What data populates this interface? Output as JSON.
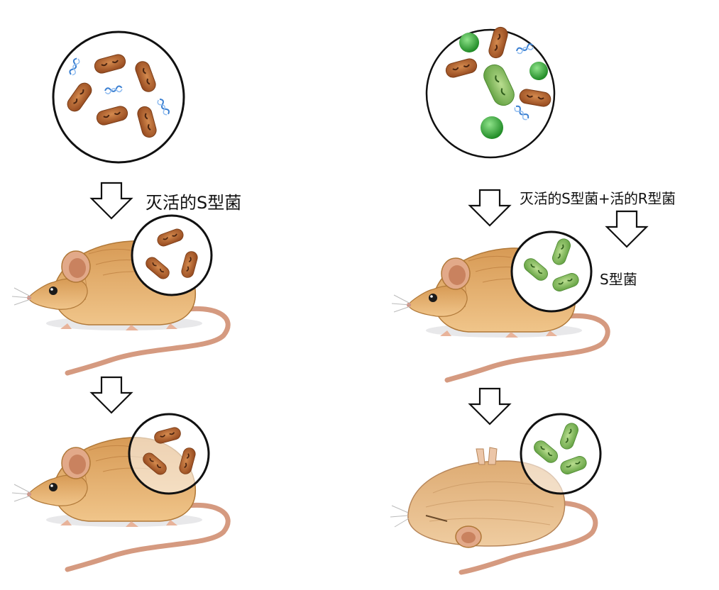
{
  "labels": {
    "left_treatment": "灭活的S型菌",
    "right_treatment": "灭活的S型菌+活的R型菌",
    "right_result": "S型菌"
  },
  "colors": {
    "s_bacterium": "#b5622f",
    "r_bacterium_live": "#3fae3a",
    "s_bacterium_transformed": "#7bbd5a",
    "dna_strand": "#3a7fd1",
    "mouse_fur": "#e0a45a"
  },
  "icons": [
    "down-arrow-icon",
    "bacteria-circle",
    "mouse-alive",
    "mouse-dead",
    "dna-strand-icon"
  ]
}
